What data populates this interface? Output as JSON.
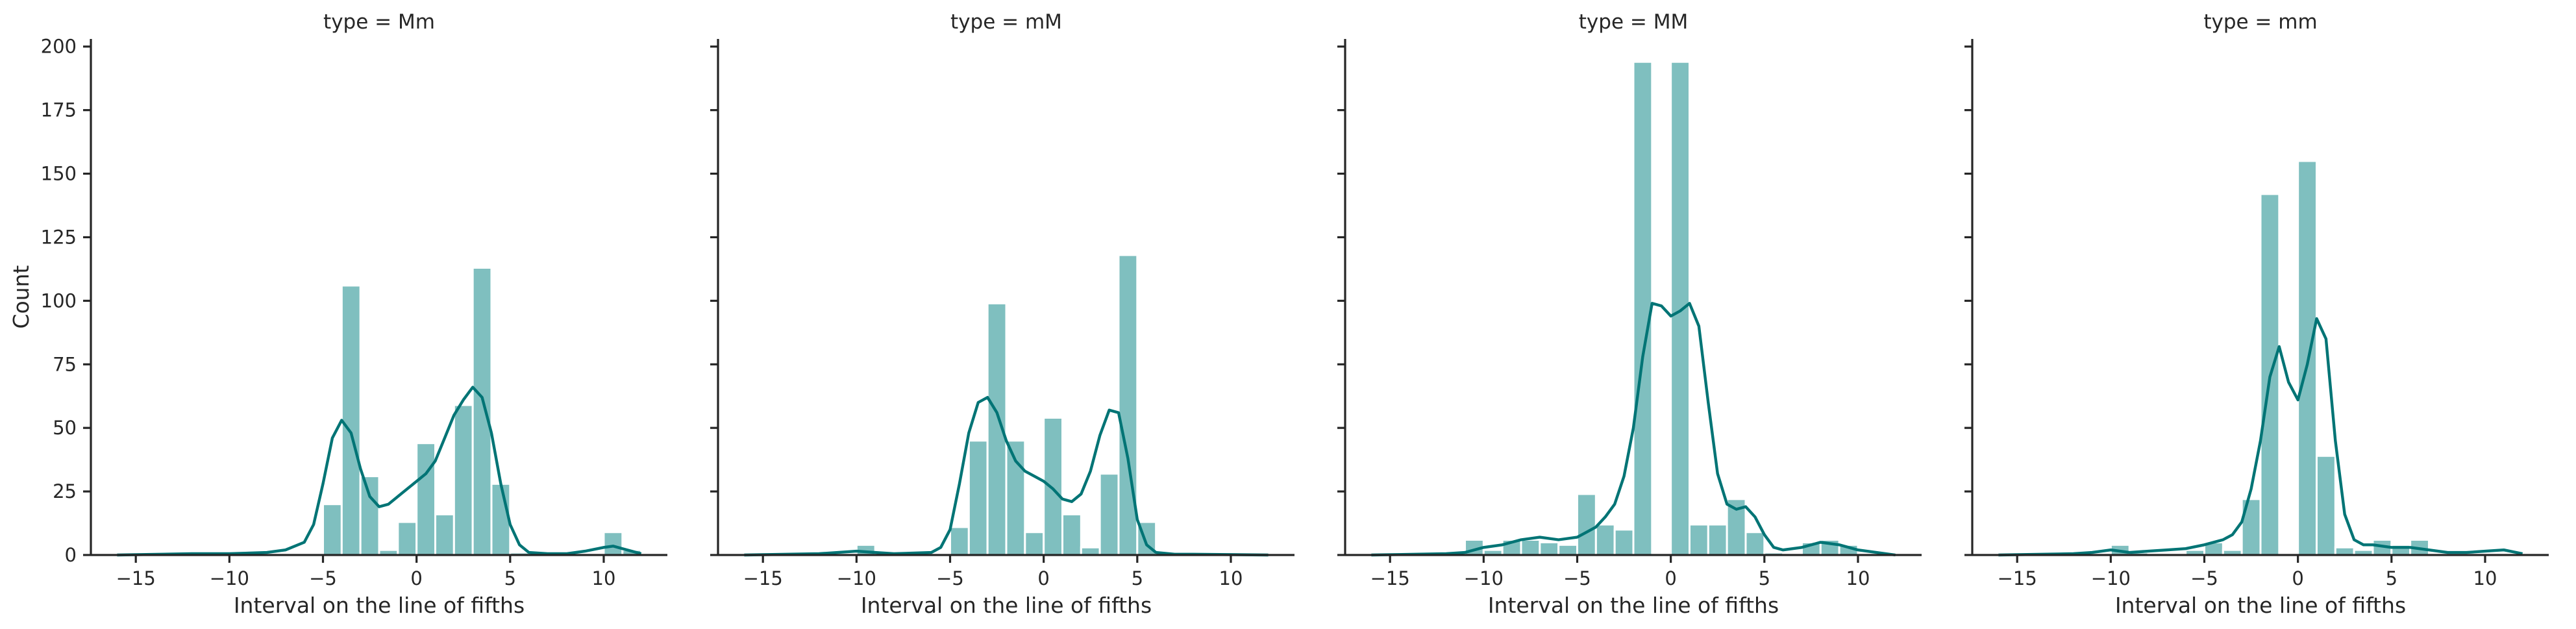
{
  "chart_data": [
    {
      "type": "histogram",
      "title": "type = Mm",
      "xlabel": "Interval on the line of fifths",
      "ylabel": "Count",
      "xlim": [
        -17.4,
        13.4
      ],
      "ylim": [
        0,
        203
      ],
      "xticks": [
        -15,
        -10,
        -5,
        0,
        5,
        10
      ],
      "xtick_labels": [
        "−15",
        "−10",
        "−5",
        "0",
        "5",
        "10"
      ],
      "yticks": [
        0,
        25,
        50,
        75,
        100,
        125,
        150,
        175,
        200
      ],
      "ytick_labels": [
        "0",
        "25",
        "50",
        "75",
        "100",
        "125",
        "150",
        "175",
        "200"
      ],
      "bin_edges": [
        -16,
        -15,
        -14,
        -13,
        -12,
        -11,
        -10,
        -9,
        -8,
        -7,
        -6,
        -5,
        -4,
        -3,
        -2,
        -1,
        0,
        1,
        2,
        3,
        4,
        5,
        6,
        7,
        8,
        9,
        10,
        11,
        12
      ],
      "counts": [
        0,
        0,
        0,
        0,
        0,
        0,
        0,
        0,
        0,
        0,
        0,
        20,
        106,
        31,
        2,
        13,
        44,
        16,
        59,
        113,
        28,
        1,
        0,
        0,
        0,
        0,
        9,
        2
      ],
      "kde": {
        "x": [
          -16,
          -12,
          -10,
          -8,
          -7,
          -6,
          -5.5,
          -5,
          -4.5,
          -4,
          -3.5,
          -3,
          -2.5,
          -2,
          -1.5,
          -1,
          -0.5,
          0,
          0.5,
          1,
          1.5,
          2,
          2.5,
          3,
          3.5,
          4,
          4.5,
          5,
          5.5,
          6,
          7,
          8,
          9,
          10,
          10.5,
          11,
          12
        ],
        "y": [
          0,
          0.5,
          0.5,
          1,
          2,
          5,
          12,
          28,
          46,
          53,
          48,
          34,
          23,
          19,
          20,
          23,
          26,
          29,
          32,
          37,
          46,
          55,
          61,
          66,
          62,
          48,
          28,
          12,
          4,
          1,
          0.5,
          0.5,
          1.5,
          3,
          3.5,
          2.5,
          0.5
        ]
      }
    },
    {
      "type": "histogram",
      "title": "type = mM",
      "xlabel": "Interval on the line of fifths",
      "xlim": [
        -17.4,
        13.4
      ],
      "ylim": [
        0,
        203
      ],
      "xticks": [
        -15,
        -10,
        -5,
        0,
        5,
        10
      ],
      "xtick_labels": [
        "−15",
        "−10",
        "−5",
        "0",
        "5",
        "10"
      ],
      "yticks": [
        0,
        25,
        50,
        75,
        100,
        125,
        150,
        175,
        200
      ],
      "bin_edges": [
        -16,
        -15,
        -14,
        -13,
        -12,
        -11,
        -10,
        -9,
        -8,
        -7,
        -6,
        -5,
        -4,
        -3,
        -2,
        -1,
        0,
        1,
        2,
        3,
        4,
        5,
        6,
        7,
        8,
        9,
        10,
        11,
        12
      ],
      "counts": [
        0,
        0,
        0,
        0,
        0,
        0,
        4,
        0,
        0,
        0,
        0,
        11,
        45,
        99,
        45,
        9,
        54,
        16,
        3,
        32,
        118,
        13,
        0,
        0,
        0,
        0,
        0,
        0
      ],
      "kde": {
        "x": [
          -16,
          -12,
          -11,
          -10,
          -9,
          -8,
          -6,
          -5.5,
          -5,
          -4.5,
          -4,
          -3.5,
          -3,
          -2.5,
          -2,
          -1.5,
          -1,
          -0.5,
          0,
          0.5,
          1,
          1.5,
          2,
          2.5,
          3,
          3.5,
          4,
          4.5,
          5,
          5.5,
          6,
          7,
          8,
          12
        ],
        "y": [
          0,
          0.5,
          1,
          1.5,
          1,
          0.5,
          1,
          3,
          10,
          28,
          48,
          60,
          62,
          56,
          45,
          37,
          33,
          31,
          29,
          26,
          22,
          21,
          24,
          33,
          47,
          57,
          56,
          38,
          14,
          4,
          1,
          0.3,
          0.3,
          0
        ]
      }
    },
    {
      "type": "histogram",
      "title": "type = MM",
      "xlabel": "Interval on the line of fifths",
      "xlim": [
        -17.4,
        13.4
      ],
      "ylim": [
        0,
        203
      ],
      "xticks": [
        -15,
        -10,
        -5,
        0,
        5,
        10
      ],
      "xtick_labels": [
        "−15",
        "−10",
        "−5",
        "0",
        "5",
        "10"
      ],
      "yticks": [
        0,
        25,
        50,
        75,
        100,
        125,
        150,
        175,
        200
      ],
      "bin_edges": [
        -16,
        -15,
        -14,
        -13,
        -12,
        -11,
        -10,
        -9,
        -8,
        -7,
        -6,
        -5,
        -4,
        -3,
        -2,
        -1,
        0,
        1,
        2,
        3,
        4,
        5,
        6,
        7,
        8,
        9,
        10,
        11,
        12
      ],
      "counts": [
        0,
        0,
        0,
        0,
        0,
        6,
        2,
        6,
        6,
        5,
        4,
        24,
        12,
        10,
        194,
        0,
        194,
        12,
        12,
        22,
        9,
        1,
        0,
        5,
        6,
        4,
        0,
        0
      ],
      "kde": {
        "x": [
          -16,
          -12,
          -11,
          -10,
          -9,
          -8,
          -7,
          -6,
          -5,
          -4.5,
          -4,
          -3.5,
          -3,
          -2.5,
          -2,
          -1.5,
          -1,
          -0.5,
          0,
          0.5,
          1,
          1.5,
          2,
          2.5,
          3,
          3.5,
          4,
          4.5,
          5,
          5.5,
          6,
          7,
          8,
          9,
          10,
          12
        ],
        "y": [
          0,
          0.5,
          1,
          3,
          4,
          6,
          7,
          6,
          7,
          9,
          11,
          15,
          20,
          31,
          50,
          78,
          99,
          98,
          94,
          96,
          99,
          90,
          60,
          32,
          20,
          18,
          19,
          15,
          8,
          3,
          2,
          3,
          5,
          4,
          2,
          0
        ]
      }
    },
    {
      "type": "histogram",
      "title": "type = mm",
      "xlabel": "Interval on the line of fifths",
      "xlim": [
        -17.4,
        13.4
      ],
      "ylim": [
        0,
        203
      ],
      "xticks": [
        -15,
        -10,
        -5,
        0,
        5,
        10
      ],
      "xtick_labels": [
        "−15",
        "−10",
        "−5",
        "0",
        "5",
        "10"
      ],
      "yticks": [
        0,
        25,
        50,
        75,
        100,
        125,
        150,
        175,
        200
      ],
      "bin_edges": [
        -16,
        -15,
        -14,
        -13,
        -12,
        -11,
        -10,
        -9,
        -8,
        -7,
        -6,
        -5,
        -4,
        -3,
        -2,
        -1,
        0,
        1,
        2,
        3,
        4,
        5,
        6,
        7,
        8,
        9,
        10,
        11,
        12
      ],
      "counts": [
        0,
        0,
        0,
        0,
        0,
        0,
        4,
        1,
        0,
        0,
        2,
        5,
        2,
        22,
        142,
        0,
        155,
        39,
        3,
        2,
        6,
        4,
        6,
        0,
        0,
        0,
        0,
        0
      ],
      "kde": {
        "x": [
          -16,
          -12,
          -11,
          -10,
          -9,
          -8,
          -7,
          -6,
          -5,
          -4.5,
          -4,
          -3.5,
          -3,
          -2.5,
          -2,
          -1.5,
          -1,
          -0.5,
          0,
          0.5,
          1,
          1.5,
          2,
          2.5,
          3,
          3.5,
          4,
          4.5,
          5,
          5.5,
          6,
          7,
          8,
          9,
          10,
          11,
          12
        ],
        "y": [
          0,
          0.5,
          1,
          2,
          1,
          1.5,
          2,
          2.5,
          4,
          5,
          6,
          8,
          13,
          26,
          45,
          70,
          82,
          68,
          61,
          75,
          93,
          85,
          45,
          16,
          6,
          4,
          4,
          3.5,
          3,
          3,
          3,
          2,
          1,
          1,
          1.5,
          2,
          0.5
        ]
      }
    }
  ]
}
